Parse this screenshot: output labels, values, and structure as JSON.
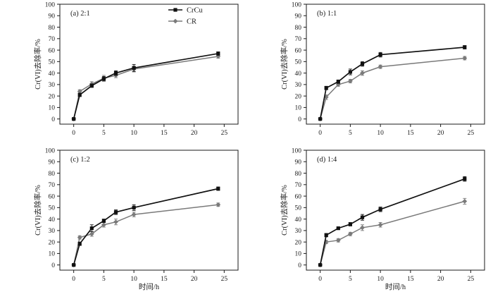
{
  "figure": {
    "background": "#ffffff",
    "axis_color": "#1a1a1a",
    "text_color": "#1a1a1a"
  },
  "chart_data": [
    {
      "type": "line",
      "panel_label": "(a) 2:1",
      "x": [
        0,
        1,
        3,
        5,
        7,
        10,
        24
      ],
      "x_ticks": [
        0,
        5,
        10,
        15,
        20,
        25
      ],
      "y_ticks": [
        0,
        10,
        20,
        30,
        40,
        50,
        60,
        70,
        80,
        90,
        100
      ],
      "xlim": [
        -2.3,
        27.3
      ],
      "ylim": [
        -4.5,
        100
      ],
      "xlabel": "",
      "ylabel": "Cr(VI)去除率/%",
      "legend": {
        "visible": true,
        "position": "top-right",
        "entries": [
          "CrCu",
          "CR"
        ]
      },
      "series": [
        {
          "name": "CrCu",
          "color": "#111111",
          "marker": "square",
          "values": [
            0,
            21,
            29,
            35,
            40,
            44.5,
            57
          ],
          "errors": [
            0.5,
            1.5,
            1.5,
            2,
            2,
            3,
            1.5
          ]
        },
        {
          "name": "CR",
          "color": "#7a7a7a",
          "marker": "diamond",
          "values": [
            0,
            24,
            30.5,
            35.5,
            38,
            43.5,
            54.5
          ],
          "errors": [
            0.5,
            1.5,
            2,
            2.5,
            2,
            2.5,
            1.5
          ]
        }
      ]
    },
    {
      "type": "line",
      "panel_label": "(b) 1:1",
      "x": [
        0,
        1,
        3,
        5,
        7,
        10,
        24
      ],
      "x_ticks": [
        0,
        5,
        10,
        15,
        20,
        25
      ],
      "y_ticks": [
        0,
        10,
        20,
        30,
        40,
        50,
        60,
        70,
        80,
        90,
        100
      ],
      "xlim": [
        -2.3,
        27.3
      ],
      "ylim": [
        -4.5,
        100
      ],
      "xlabel": "",
      "ylabel": "Cr(VI)去除率/%",
      "legend": {
        "visible": false,
        "position": "top-right",
        "entries": [
          "CrCu",
          "CR"
        ]
      },
      "series": [
        {
          "name": "CrCu",
          "color": "#111111",
          "marker": "square",
          "values": [
            0,
            27,
            32.5,
            41,
            48,
            56,
            62.5
          ],
          "errors": [
            0.5,
            1.5,
            1.5,
            2.5,
            2,
            2,
            1.5
          ]
        },
        {
          "name": "CR",
          "color": "#7a7a7a",
          "marker": "diamond",
          "values": [
            0,
            19,
            30,
            33,
            40,
            45.5,
            53
          ],
          "errors": [
            0.5,
            2,
            1.5,
            1.5,
            2,
            1.5,
            1.5
          ]
        }
      ]
    },
    {
      "type": "line",
      "panel_label": "(c) 1:2",
      "x": [
        0,
        1,
        3,
        5,
        7,
        10,
        24
      ],
      "x_ticks": [
        0,
        5,
        10,
        15,
        20,
        25
      ],
      "y_ticks": [
        0,
        10,
        20,
        30,
        40,
        50,
        60,
        70,
        80,
        90,
        100
      ],
      "xlim": [
        -2.3,
        27.3
      ],
      "ylim": [
        -4.5,
        100
      ],
      "xlabel": "时间/h",
      "ylabel": "Cr(VI)去除率/%",
      "legend": {
        "visible": false,
        "position": "top-right",
        "entries": [
          "CrCu",
          "CR"
        ]
      },
      "series": [
        {
          "name": "CrCu",
          "color": "#111111",
          "marker": "square",
          "values": [
            0,
            18.5,
            32,
            38.5,
            46,
            50,
            66.5
          ],
          "errors": [
            0.5,
            1.5,
            3,
            1.5,
            2,
            2.5,
            1.5
          ]
        },
        {
          "name": "CR",
          "color": "#7a7a7a",
          "marker": "diamond",
          "values": [
            0,
            24,
            27,
            35,
            37.5,
            44,
            52.5
          ],
          "errors": [
            0.5,
            1.5,
            2,
            2,
            2.5,
            2,
            1.5
          ]
        }
      ]
    },
    {
      "type": "line",
      "panel_label": "(d) 1:4",
      "x": [
        0,
        1,
        3,
        5,
        7,
        10,
        24
      ],
      "x_ticks": [
        0,
        5,
        10,
        15,
        20,
        25
      ],
      "y_ticks": [
        0,
        10,
        20,
        30,
        40,
        50,
        60,
        70,
        80,
        90,
        100
      ],
      "xlim": [
        -2.3,
        27.3
      ],
      "ylim": [
        -4.5,
        100
      ],
      "xlabel": "时间/h",
      "ylabel": "Cr(VI)去除率/%",
      "legend": {
        "visible": false,
        "position": "top-right",
        "entries": [
          "CrCu",
          "CR"
        ]
      },
      "series": [
        {
          "name": "CrCu",
          "color": "#111111",
          "marker": "square",
          "values": [
            0,
            26,
            32,
            35.5,
            41.5,
            48.5,
            75
          ],
          "errors": [
            0.5,
            1.5,
            1,
            1.5,
            2.5,
            2,
            2
          ]
        },
        {
          "name": "CR",
          "color": "#7a7a7a",
          "marker": "diamond",
          "values": [
            0,
            20,
            21.5,
            27,
            32.5,
            35,
            55.5
          ],
          "errors": [
            0.5,
            1.5,
            1.5,
            1.5,
            2.5,
            2,
            2.5
          ]
        }
      ]
    }
  ]
}
